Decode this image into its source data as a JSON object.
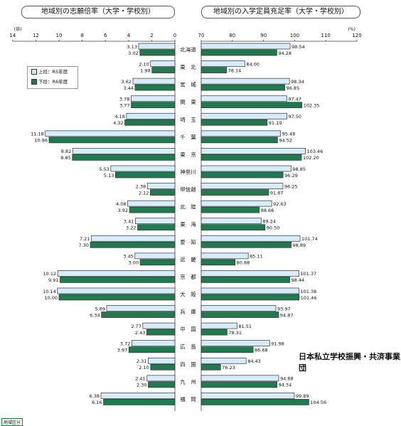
{
  "titles": {
    "left": "地域別の志願倍率（大学・学校別）",
    "right": "地域別の入学定員充足率（大学・学校別）"
  },
  "units": {
    "left": "(倍)",
    "right": "(%)"
  },
  "legend": {
    "upper": "上段：R5年度",
    "lower": "下段：R6年度"
  },
  "footer": "日本私立学校振興・共済事業団",
  "badge": "地域区分",
  "colors": {
    "upper_fill": "#d6ecfa",
    "lower_fill": "#1f7a4d",
    "outline": "#333333"
  },
  "chart_data": [
    {
      "type": "bar",
      "orientation": "horizontal",
      "title": "地域別の志願倍率（大学・学校別）",
      "unit": "倍",
      "xlim": [
        0,
        14
      ],
      "ticks": [
        14,
        12,
        10,
        8,
        6,
        4,
        2,
        0
      ],
      "direction": "right-to-left",
      "categories": [
        "北海道",
        "東北",
        "宮城",
        "関東",
        "埼玉",
        "千葉",
        "東京",
        "神奈川",
        "甲信越",
        "北陸",
        "東海",
        "愛知",
        "近畿",
        "京都",
        "大阪",
        "兵庫",
        "中国",
        "広島",
        "四国",
        "九州",
        "福岡"
      ],
      "series": [
        {
          "name": "上段：R5年度",
          "values": [
            3.13,
            2.1,
            3.62,
            3.78,
            4.18,
            11.18,
            8.82,
            5.53,
            2.38,
            4.08,
            3.41,
            7.21,
            3.45,
            10.12,
            10.14,
            5.89,
            2.77,
            3.72,
            2.31,
            2.41,
            6.38
          ]
        },
        {
          "name": "下段：R6年度",
          "values": [
            3.02,
            1.98,
            3.44,
            3.77,
            4.32,
            10.86,
            8.85,
            5.13,
            2.12,
            3.92,
            3.22,
            7.3,
            3.0,
            9.91,
            10.0,
            6.34,
            2.43,
            3.97,
            2.1,
            2.3,
            6.16
          ]
        }
      ]
    },
    {
      "type": "bar",
      "orientation": "horizontal",
      "title": "地域別の入学定員充足率（大学・学校別）",
      "unit": "%",
      "xlim": [
        70,
        120
      ],
      "ticks": [
        70,
        80,
        90,
        100,
        110,
        120
      ],
      "categories": [
        "北海道",
        "東北",
        "宮城",
        "関東",
        "埼玉",
        "千葉",
        "東京",
        "神奈川",
        "甲信越",
        "北陸",
        "東海",
        "愛知",
        "近畿",
        "京都",
        "大阪",
        "兵庫",
        "中国",
        "広島",
        "四国",
        "九州",
        "福岡"
      ],
      "series": [
        {
          "name": "上段：R5年度",
          "values": [
            98.54,
            84.0,
            98.34,
            97.47,
            97.5,
            95.48,
            103.46,
            98.85,
            96.25,
            92.63,
            89.24,
            101.74,
            85.11,
            101.37,
            101.38,
            93.97,
            81.51,
            91.98,
            84.43,
            94.88,
            99.89
          ]
        },
        {
          "name": "下段：R6年度",
          "values": [
            94.28,
            78.14,
            96.85,
            102.35,
            91.19,
            94.52,
            102.2,
            96.29,
            91.67,
            88.66,
            90.5,
            98.89,
            80.88,
            98.44,
            101.46,
            94.87,
            78.31,
            86.68,
            76.23,
            94.34,
            104.56
          ]
        }
      ]
    }
  ]
}
